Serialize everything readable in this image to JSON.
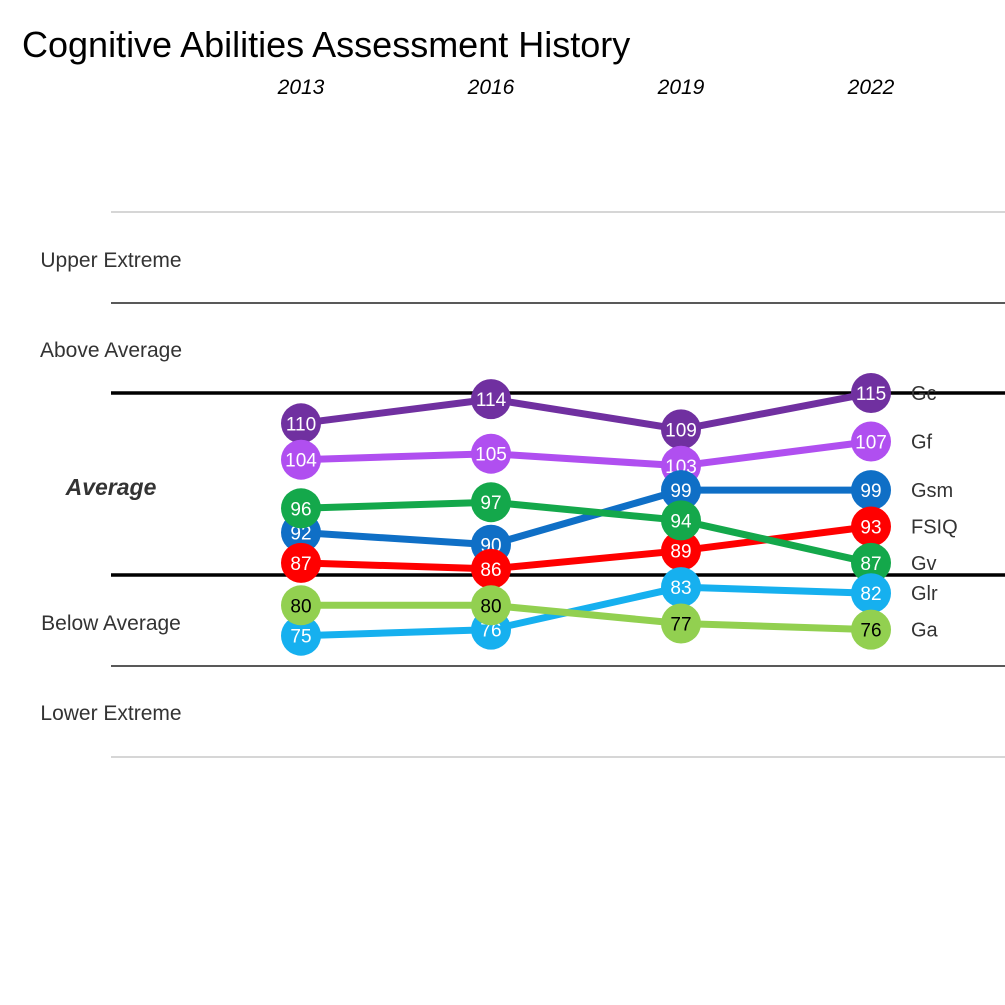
{
  "chart_data": {
    "type": "line",
    "title": "Cognitive Abilities Assessment History",
    "x": [
      "2013",
      "2016",
      "2019",
      "2022"
    ],
    "bands": [
      "Upper Extreme",
      "Above Average",
      "Average",
      "Below Average",
      "Lower Extreme"
    ],
    "ylim": [
      65,
      125
    ],
    "series": [
      {
        "name": "Gc",
        "values": [
          110,
          114,
          109,
          115
        ],
        "color": "#7030a0",
        "text_color": "#ffffff"
      },
      {
        "name": "Gf",
        "values": [
          104,
          105,
          103,
          107
        ],
        "color": "#b04ff0",
        "text_color": "#ffffff"
      },
      {
        "name": "Gsm",
        "values": [
          92,
          90,
          99,
          99
        ],
        "color": "#0f6fc6",
        "text_color": "#ffffff"
      },
      {
        "name": "FSIQ",
        "values": [
          87,
          86,
          89,
          93
        ],
        "color": "#ff0000",
        "text_color": "#ffffff"
      },
      {
        "name": "Gv",
        "values": [
          96,
          97,
          94,
          87
        ],
        "color": "#14a84b",
        "text_color": "#ffffff"
      },
      {
        "name": "Glr",
        "values": [
          75,
          76,
          83,
          82
        ],
        "color": "#16b0ef",
        "text_color": "#ffffff"
      },
      {
        "name": "Ga",
        "values": [
          80,
          80,
          77,
          76
        ],
        "color": "#92d050",
        "text_color": "#000000"
      }
    ]
  }
}
